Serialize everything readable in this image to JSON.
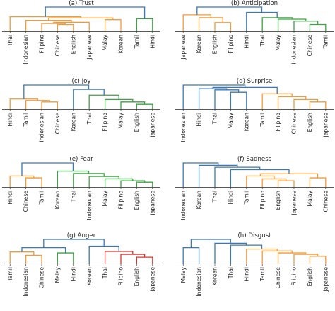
{
  "figure": {
    "panel_count": 8
  },
  "colors": {
    "blue": "#3a78b4",
    "orange": "#f09a3c",
    "green": "#3fa244",
    "red": "#d8362d"
  },
  "chart_data": [
    {
      "type": "dendrogram",
      "title": "(a) Trust",
      "leaves": [
        "Thai",
        "Indonesian",
        "Filipino",
        "Chinese",
        "English",
        "Japanese",
        "Malay",
        "Korean",
        "Tamil",
        "Hindi"
      ],
      "merges": [
        {
          "a": 3,
          "b": 4,
          "height": 0.28,
          "color": "orange"
        },
        {
          "a": 2,
          "b": 10,
          "height": 0.32,
          "color": "orange"
        },
        {
          "a": 11,
          "b": 5,
          "height": 0.37,
          "color": "orange"
        },
        {
          "a": 1,
          "b": 12,
          "height": 0.45,
          "color": "orange"
        },
        {
          "a": 6,
          "b": 7,
          "height": 0.48,
          "color": "orange"
        },
        {
          "a": 13,
          "b": 14,
          "height": 0.55,
          "color": "orange"
        },
        {
          "a": 0,
          "b": 15,
          "height": 0.6,
          "color": "orange"
        },
        {
          "a": 8,
          "b": 9,
          "height": 0.52,
          "color": "green"
        },
        {
          "a": 16,
          "b": 17,
          "height": 1.0,
          "color": "blue"
        }
      ]
    },
    {
      "type": "dendrogram",
      "title": "(b) Anticipation",
      "leaves": [
        "Japanese",
        "Korean",
        "English",
        "Filipino",
        "Hindi",
        "Thai",
        "Malay",
        "Indonesian",
        "Chinese",
        "Tamil"
      ],
      "merges": [
        {
          "a": 2,
          "b": 3,
          "height": 0.36,
          "color": "orange"
        },
        {
          "a": 1,
          "b": 10,
          "height": 0.56,
          "color": "orange"
        },
        {
          "a": 0,
          "b": 11,
          "height": 0.68,
          "color": "orange"
        },
        {
          "a": 8,
          "b": 9,
          "height": 0.28,
          "color": "green"
        },
        {
          "a": 7,
          "b": 13,
          "height": 0.42,
          "color": "green"
        },
        {
          "a": 6,
          "b": 14,
          "height": 0.5,
          "color": "green"
        },
        {
          "a": 5,
          "b": 15,
          "height": 0.56,
          "color": "green"
        },
        {
          "a": 4,
          "b": 16,
          "height": 0.78,
          "color": "blue"
        },
        {
          "a": 12,
          "b": 17,
          "height": 1.0,
          "color": "blue"
        }
      ]
    },
    {
      "type": "dendrogram",
      "title": "(c) Joy",
      "leaves": [
        "Hindi",
        "Tamil",
        "Indonesian",
        "Chinese",
        "Korean",
        "Thai",
        "Filipino",
        "Malay",
        "English",
        "Japanese"
      ],
      "merges": [
        {
          "a": 2,
          "b": 3,
          "height": 0.3,
          "color": "orange"
        },
        {
          "a": 1,
          "b": 10,
          "height": 0.36,
          "color": "orange"
        },
        {
          "a": 0,
          "b": 11,
          "height": 0.42,
          "color": "orange"
        },
        {
          "a": 8,
          "b": 9,
          "height": 0.2,
          "color": "green"
        },
        {
          "a": 7,
          "b": 13,
          "height": 0.3,
          "color": "green"
        },
        {
          "a": 6,
          "b": 14,
          "height": 0.4,
          "color": "green"
        },
        {
          "a": 5,
          "b": 15,
          "height": 0.58,
          "color": "green"
        },
        {
          "a": 4,
          "b": 16,
          "height": 0.82,
          "color": "blue"
        },
        {
          "a": 12,
          "b": 17,
          "height": 1.0,
          "color": "blue"
        }
      ]
    },
    {
      "type": "dendrogram",
      "title": "(d) Surprise",
      "leaves": [
        "Indonesian",
        "Hindi",
        "Thai",
        "Malay",
        "Korean",
        "Tamil",
        "Filipino",
        "Chinese",
        "English",
        "Japanese"
      ],
      "merges": [
        {
          "a": 8,
          "b": 9,
          "height": 0.3,
          "color": "orange"
        },
        {
          "a": 7,
          "b": 10,
          "height": 0.4,
          "color": "orange"
        },
        {
          "a": 6,
          "b": 11,
          "height": 0.52,
          "color": "orange"
        },
        {
          "a": 5,
          "b": 12,
          "height": 0.64,
          "color": "orange"
        },
        {
          "a": 3,
          "b": 4,
          "height": 0.7,
          "color": "blue"
        },
        {
          "a": 2,
          "b": 14,
          "height": 0.8,
          "color": "blue"
        },
        {
          "a": 1,
          "b": 15,
          "height": 0.85,
          "color": "blue"
        },
        {
          "a": 16,
          "b": 13,
          "height": 0.9,
          "color": "blue"
        },
        {
          "a": 0,
          "b": 17,
          "height": 1.0,
          "color": "blue"
        }
      ]
    },
    {
      "type": "dendrogram",
      "title": "(e) Fear",
      "leaves": [
        "Hindi",
        "Chinese",
        "Tamil",
        "Korean",
        "Thai",
        "Indonesian",
        "Malay",
        "Filipino",
        "English",
        "Japanese"
      ],
      "merges": [
        {
          "a": 1,
          "b": 2,
          "height": 0.38,
          "color": "orange"
        },
        {
          "a": 0,
          "b": 10,
          "height": 0.46,
          "color": "orange"
        },
        {
          "a": 8,
          "b": 9,
          "height": 0.2,
          "color": "green"
        },
        {
          "a": 7,
          "b": 12,
          "height": 0.26,
          "color": "green"
        },
        {
          "a": 6,
          "b": 13,
          "height": 0.34,
          "color": "green"
        },
        {
          "a": 5,
          "b": 14,
          "height": 0.44,
          "color": "green"
        },
        {
          "a": 4,
          "b": 15,
          "height": 0.56,
          "color": "green"
        },
        {
          "a": 3,
          "b": 16,
          "height": 0.66,
          "color": "green"
        },
        {
          "a": 11,
          "b": 17,
          "height": 1.0,
          "color": "blue"
        }
      ]
    },
    {
      "type": "dendrogram",
      "title": "(f) Sadness",
      "leaves": [
        "Indonesian",
        "Korean",
        "Thai",
        "Hindi",
        "Tamil",
        "Filipino",
        "English",
        "Japanese",
        "Malay",
        "Chinese"
      ],
      "merges": [
        {
          "a": 6,
          "b": 7,
          "height": 0.26,
          "color": "orange"
        },
        {
          "a": 5,
          "b": 10,
          "height": 0.34,
          "color": "orange"
        },
        {
          "a": 8,
          "b": 9,
          "height": 0.38,
          "color": "orange"
        },
        {
          "a": 4,
          "b": 11,
          "height": 0.46,
          "color": "orange"
        },
        {
          "a": 13,
          "b": 12,
          "height": 0.55,
          "color": "orange"
        },
        {
          "a": 3,
          "b": 14,
          "height": 0.72,
          "color": "blue"
        },
        {
          "a": 2,
          "b": 15,
          "height": 0.82,
          "color": "blue"
        },
        {
          "a": 1,
          "b": 16,
          "height": 0.9,
          "color": "blue"
        },
        {
          "a": 0,
          "b": 17,
          "height": 1.0,
          "color": "blue"
        }
      ]
    },
    {
      "type": "dendrogram",
      "title": "(g) Anger",
      "leaves": [
        "Tamil",
        "Indonesian",
        "Chinese",
        "Malay",
        "Hindi",
        "Korean",
        "Thai",
        "Filipino",
        "English",
        "Japanese"
      ],
      "merges": [
        {
          "a": 1,
          "b": 2,
          "height": 0.34,
          "color": "orange"
        },
        {
          "a": 0,
          "b": 10,
          "height": 0.48,
          "color": "orange"
        },
        {
          "a": 3,
          "b": 4,
          "height": 0.44,
          "color": "green"
        },
        {
          "a": 11,
          "b": 12,
          "height": 0.66,
          "color": "blue"
        },
        {
          "a": 8,
          "b": 9,
          "height": 0.26,
          "color": "red"
        },
        {
          "a": 7,
          "b": 14,
          "height": 0.38,
          "color": "red"
        },
        {
          "a": 6,
          "b": 15,
          "height": 0.5,
          "color": "red"
        },
        {
          "a": 5,
          "b": 16,
          "height": 0.72,
          "color": "blue"
        },
        {
          "a": 13,
          "b": 17,
          "height": 1.0,
          "color": "blue"
        }
      ]
    },
    {
      "type": "dendrogram",
      "title": "(h) Disgust",
      "leaves": [
        "Malay",
        "Indonesian",
        "Korean",
        "Thai",
        "Hindi",
        "Tamil",
        "Chinese",
        "Filipino",
        "English",
        "Japanese"
      ],
      "merges": [
        {
          "a": 8,
          "b": 9,
          "height": 0.3,
          "color": "orange"
        },
        {
          "a": 7,
          "b": 10,
          "height": 0.38,
          "color": "orange"
        },
        {
          "a": 6,
          "b": 11,
          "height": 0.44,
          "color": "orange"
        },
        {
          "a": 5,
          "b": 12,
          "height": 0.52,
          "color": "orange"
        },
        {
          "a": 4,
          "b": 13,
          "height": 0.6,
          "color": "orange"
        },
        {
          "a": 0,
          "b": 1,
          "height": 0.66,
          "color": "blue"
        },
        {
          "a": 3,
          "b": 14,
          "height": 0.76,
          "color": "blue"
        },
        {
          "a": 2,
          "b": 16,
          "height": 0.84,
          "color": "blue"
        },
        {
          "a": 15,
          "b": 17,
          "height": 1.0,
          "color": "blue"
        }
      ]
    }
  ]
}
